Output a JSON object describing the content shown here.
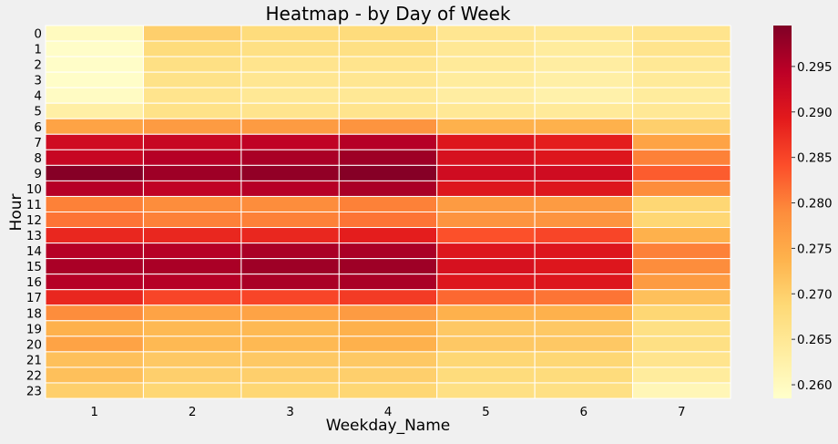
{
  "chart_data": {
    "type": "heatmap",
    "title": "Heatmap - by Day of Week",
    "xlabel": "Weekday_Name",
    "ylabel": "Hour",
    "x_categories": [
      "1",
      "2",
      "3",
      "4",
      "5",
      "6",
      "7"
    ],
    "y_categories": [
      "0",
      "1",
      "2",
      "3",
      "4",
      "5",
      "6",
      "7",
      "8",
      "9",
      "10",
      "11",
      "12",
      "13",
      "14",
      "15",
      "16",
      "17",
      "18",
      "19",
      "20",
      "21",
      "22",
      "23"
    ],
    "values": [
      [
        0.26,
        0.27,
        0.268,
        0.268,
        0.2655,
        0.265,
        0.266
      ],
      [
        0.259,
        0.268,
        0.267,
        0.267,
        0.265,
        0.264,
        0.266
      ],
      [
        0.259,
        0.267,
        0.266,
        0.266,
        0.2645,
        0.2635,
        0.265
      ],
      [
        0.259,
        0.2665,
        0.2655,
        0.2655,
        0.264,
        0.263,
        0.2645
      ],
      [
        0.2595,
        0.266,
        0.265,
        0.265,
        0.2635,
        0.2625,
        0.264
      ],
      [
        0.263,
        0.2665,
        0.266,
        0.266,
        0.265,
        0.2645,
        0.265
      ],
      [
        0.276,
        0.277,
        0.277,
        0.278,
        0.274,
        0.274,
        0.27
      ],
      [
        0.292,
        0.293,
        0.294,
        0.295,
        0.29,
        0.289,
        0.276
      ],
      [
        0.293,
        0.295,
        0.296,
        0.297,
        0.291,
        0.29,
        0.28
      ],
      [
        0.299,
        0.297,
        0.298,
        0.299,
        0.292,
        0.292,
        0.283
      ],
      [
        0.295,
        0.294,
        0.295,
        0.296,
        0.29,
        0.29,
        0.279
      ],
      [
        0.28,
        0.279,
        0.279,
        0.28,
        0.277,
        0.277,
        0.269
      ],
      [
        0.281,
        0.28,
        0.28,
        0.281,
        0.278,
        0.278,
        0.269
      ],
      [
        0.288,
        0.288,
        0.288,
        0.289,
        0.284,
        0.285,
        0.274
      ],
      [
        0.295,
        0.295,
        0.296,
        0.296,
        0.29,
        0.29,
        0.28
      ],
      [
        0.296,
        0.296,
        0.297,
        0.297,
        0.291,
        0.29,
        0.279
      ],
      [
        0.295,
        0.295,
        0.296,
        0.296,
        0.29,
        0.29,
        0.277
      ],
      [
        0.288,
        0.285,
        0.285,
        0.286,
        0.282,
        0.281,
        0.272
      ],
      [
        0.279,
        0.276,
        0.276,
        0.277,
        0.274,
        0.274,
        0.269
      ],
      [
        0.274,
        0.273,
        0.273,
        0.274,
        0.271,
        0.271,
        0.267
      ],
      [
        0.276,
        0.273,
        0.273,
        0.274,
        0.271,
        0.271,
        0.267
      ],
      [
        0.272,
        0.271,
        0.271,
        0.271,
        0.269,
        0.269,
        0.266
      ],
      [
        0.272,
        0.27,
        0.27,
        0.27,
        0.268,
        0.268,
        0.264
      ],
      [
        0.27,
        0.269,
        0.269,
        0.269,
        0.267,
        0.267,
        0.261
      ]
    ],
    "colorscale": "YlOrRd",
    "vmin": 0.2585,
    "vmax": 0.2995,
    "colorbar_ticks": [
      "0.260",
      "0.265",
      "0.270",
      "0.275",
      "0.280",
      "0.285",
      "0.290",
      "0.295"
    ],
    "colorbar_placement": "right",
    "grid": false,
    "colors": {
      "background": "#f0f0f0",
      "cell_border": "#ffffff"
    }
  }
}
